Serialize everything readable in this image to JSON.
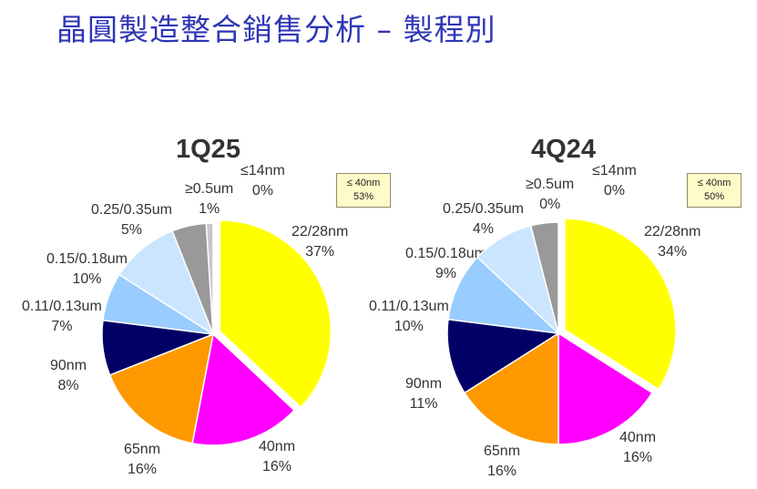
{
  "page_title": "晶圓製造整合銷售分析 – 製程別",
  "chart_data": [
    {
      "type": "pie",
      "title": "1Q25",
      "note": {
        "line1": "≤ 40nm",
        "line2": "53%"
      },
      "slices": [
        {
          "name": "22/28nm",
          "value": 37,
          "label": "37%",
          "color": "#ffff00",
          "exploded": true
        },
        {
          "name": "40nm",
          "value": 16,
          "label": "16%",
          "color": "#ff00ff"
        },
        {
          "name": "65nm",
          "value": 16,
          "label": "16%",
          "color": "#ff9900"
        },
        {
          "name": "90nm",
          "value": 8,
          "label": "8%",
          "color": "#000066"
        },
        {
          "name": "0.11/0.13um",
          "value": 7,
          "label": "7%",
          "color": "#99ccff"
        },
        {
          "name": "0.15/0.18um",
          "value": 10,
          "label": "10%",
          "color": "#cce5ff"
        },
        {
          "name": "0.25/0.35um",
          "value": 5,
          "label": "5%",
          "color": "#999999"
        },
        {
          "name": "≥0.5um",
          "value": 1,
          "label": "1%",
          "color": "#c8c8c8"
        },
        {
          "name": "≤14nm",
          "value": 0,
          "label": "0%",
          "color": "#ffffff"
        }
      ]
    },
    {
      "type": "pie",
      "title": "4Q24",
      "note": {
        "line1": "≤ 40nm",
        "line2": "50%"
      },
      "slices": [
        {
          "name": "22/28nm",
          "value": 34,
          "label": "34%",
          "color": "#ffff00",
          "exploded": true
        },
        {
          "name": "40nm",
          "value": 16,
          "label": "16%",
          "color": "#ff00ff"
        },
        {
          "name": "65nm",
          "value": 16,
          "label": "16%",
          "color": "#ff9900"
        },
        {
          "name": "90nm",
          "value": 11,
          "label": "11%",
          "color": "#000066"
        },
        {
          "name": "0.11/0.13um",
          "value": 10,
          "label": "10%",
          "color": "#99ccff"
        },
        {
          "name": "0.15/0.18um",
          "value": 9,
          "label": "9%",
          "color": "#cce5ff"
        },
        {
          "name": "0.25/0.35um",
          "value": 4,
          "label": "4%",
          "color": "#999999"
        },
        {
          "name": "≥0.5um",
          "value": 0,
          "label": "0%",
          "color": "#c8c8c8"
        },
        {
          "name": "≤14nm",
          "value": 0,
          "label": "0%",
          "color": "#ffffff"
        }
      ]
    }
  ]
}
